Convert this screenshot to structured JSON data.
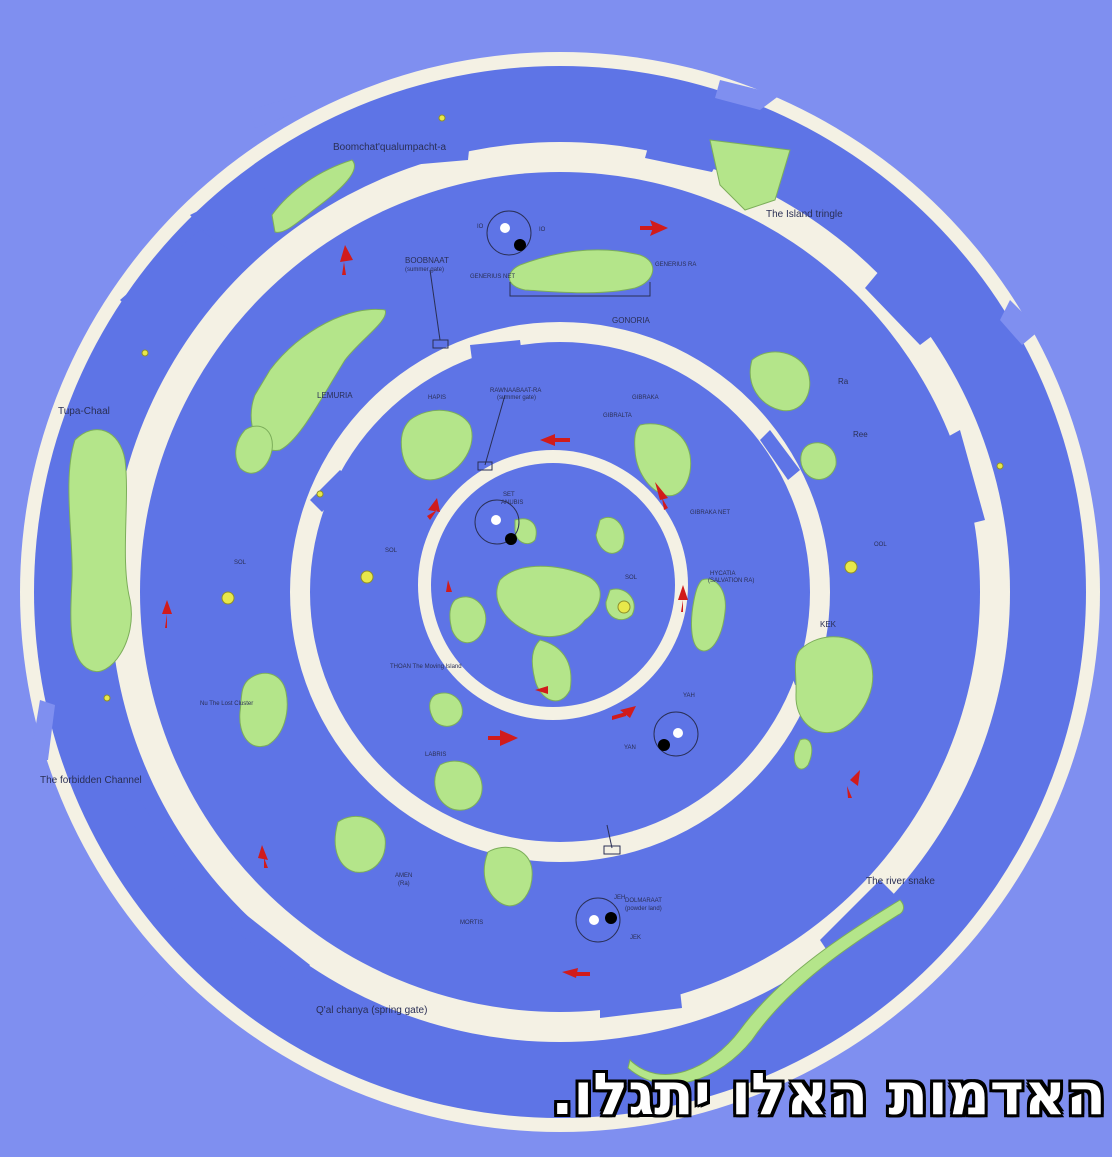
{
  "colors": {
    "water": "#5e74e6",
    "background": "#7f8ff0",
    "ice": "#f4f1e4",
    "land": "#b4e58a",
    "arrow": "#d11b1b",
    "sun": "#e8e84a"
  },
  "regions": {
    "outer_top": "Boomchat'qualumpacht-a",
    "island_tringle": "The Island tringle",
    "tupa_chaal": "Tupa-Chaal",
    "forbidden_channel": "The forbidden Channel",
    "river_snake": "The river snake",
    "spring_gate": "Q'al chanya (spring gate)",
    "boobnaat": "BOOBNAAT",
    "boobnaat_sub": "(summer gate)",
    "gonoria": "GONORIA",
    "gonoria_left": "GENERIUS NET",
    "gonoria_right": "GENERIUS RA",
    "lemuria": "LEMURIA",
    "ra": "Ra",
    "ree": "Ree",
    "hapis": "HAPIS",
    "rawnaabaat": "RAWNAABAAT-RA",
    "rawnaabaat_sub": "(summer gate)",
    "gibraka": "GIBRAKA",
    "gibraka_left": "GIBRALTA",
    "gibraka_right": "GIBRAKA NET",
    "hycatia": "HYCATIA",
    "hycatia_sub": "(SALVATION RA)",
    "kek": "KEK",
    "nu_lost_cluster": "Nu The Lost Cluster",
    "thoan": "THOAN The Moving Island",
    "labris": "LABRIS",
    "amen": "AMEN",
    "amen_sub": "(Ra)",
    "mortis": "MORTIS",
    "dolmaraat": "DOLMARAAT",
    "dolmaraat_sub": "(powder land)"
  },
  "bodies": {
    "sol_outer_left": "SOL",
    "sol_outer_right": "OOL",
    "sol_mid": "SOL",
    "sol_inner": "SOL",
    "set": "SET",
    "anubis": "ANUBIS",
    "io_left": "IO",
    "io_right": "IO",
    "yah": "YAH",
    "yan": "YAN",
    "jeh": "JEH",
    "jek": "JEK"
  },
  "subtitle": "האדמות האלו יתגלו."
}
